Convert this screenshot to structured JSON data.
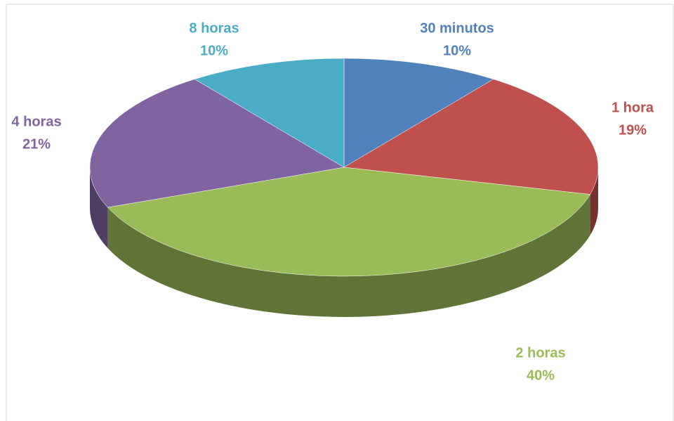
{
  "chart_data": {
    "type": "pie",
    "categories": [
      "30 minutos",
      "1 hora",
      "2 horas",
      "4 horas",
      "8 horas"
    ],
    "values": [
      10,
      19,
      40,
      21,
      10
    ],
    "value_labels": [
      "10%",
      "19%",
      "40%",
      "21%",
      "10%"
    ],
    "colors": [
      "#4f81bd",
      "#c0504d",
      "#9bbb59",
      "#8064a2",
      "#4bacc6"
    ]
  }
}
